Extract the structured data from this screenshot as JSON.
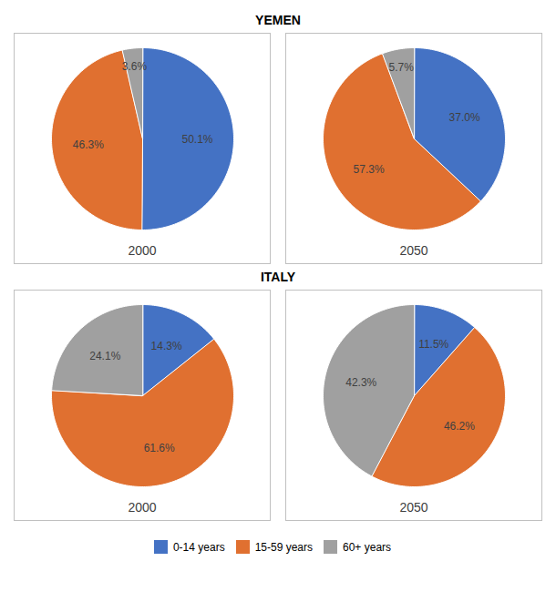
{
  "chart_data": [
    {
      "type": "pie",
      "title": "YEMEN",
      "subtitle": "2000",
      "categories": [
        "0-14 years",
        "15-59 years",
        "60+ years"
      ],
      "values": [
        50.1,
        46.3,
        3.6
      ],
      "value_labels": [
        "50.1%",
        "46.3%",
        "3.6%"
      ],
      "colors": [
        "#4472C4",
        "#E07030",
        "#A0A0A0"
      ],
      "data_labels": true,
      "legend": "bottom"
    },
    {
      "type": "pie",
      "title": "YEMEN",
      "subtitle": "2050",
      "categories": [
        "0-14 years",
        "15-59 years",
        "60+ years"
      ],
      "values": [
        37.0,
        57.3,
        5.7
      ],
      "value_labels": [
        "37.0%",
        "57.3%",
        "5.7%"
      ],
      "colors": [
        "#4472C4",
        "#E07030",
        "#A0A0A0"
      ],
      "data_labels": true,
      "legend": "bottom"
    },
    {
      "type": "pie",
      "title": "ITALY",
      "subtitle": "2000",
      "categories": [
        "0-14 years",
        "15-59 years",
        "60+ years"
      ],
      "values": [
        14.3,
        61.6,
        24.1
      ],
      "value_labels": [
        "14.3%",
        "61.6%",
        "24.1%"
      ],
      "colors": [
        "#4472C4",
        "#E07030",
        "#A0A0A0"
      ],
      "data_labels": true,
      "legend": "bottom"
    },
    {
      "type": "pie",
      "title": "ITALY",
      "subtitle": "2050",
      "categories": [
        "0-14 years",
        "15-59 years",
        "60+ years"
      ],
      "values": [
        11.5,
        46.2,
        42.3
      ],
      "value_labels": [
        "11.5%",
        "46.2%",
        "42.3%"
      ],
      "colors": [
        "#4472C4",
        "#E07030",
        "#A0A0A0"
      ],
      "data_labels": true,
      "legend": "bottom"
    }
  ]
}
